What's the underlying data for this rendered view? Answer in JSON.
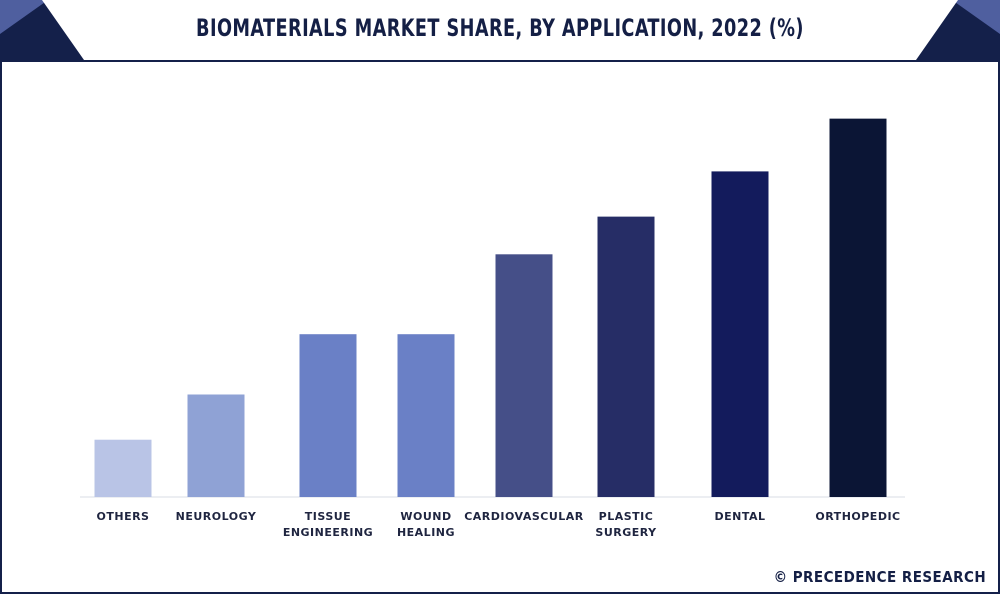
{
  "header": {
    "title": "BIOMATERIALS MARKET SHARE, BY APPLICATION, 2022 (%)"
  },
  "footer": {
    "copyright": "© PRECEDENCE RESEARCH"
  },
  "colors": {
    "frame": "#14204a",
    "corner": "#4f5f9f",
    "title": "#141f45"
  },
  "chart_data": {
    "type": "bar",
    "title": "BIOMATERIALS MARKET SHARE, BY APPLICATION, 2022 (%)",
    "xlabel": "",
    "ylabel": "",
    "ylim": [
      0,
      27
    ],
    "grid": false,
    "legend": "none",
    "categories": [
      [
        "OTHERS"
      ],
      [
        "NEUROLOGY"
      ],
      [
        "TISSUE",
        "ENGINEERING"
      ],
      [
        "WOUND",
        "HEALING"
      ],
      [
        "CARDIOVASCULAR"
      ],
      [
        "PLASTIC",
        "SURGERY"
      ],
      [
        "DENTAL"
      ],
      [
        "ORTHOPEDIC"
      ]
    ],
    "values": [
      3.8,
      6.8,
      10.8,
      10.8,
      16.1,
      18.6,
      21.6,
      25.1
    ],
    "bar_colors": [
      "#b9c4e6",
      "#8fa2d5",
      "#6a80c6",
      "#6a80c6",
      "#454f88",
      "#262d66",
      "#131b5c",
      "#0b1535"
    ]
  }
}
